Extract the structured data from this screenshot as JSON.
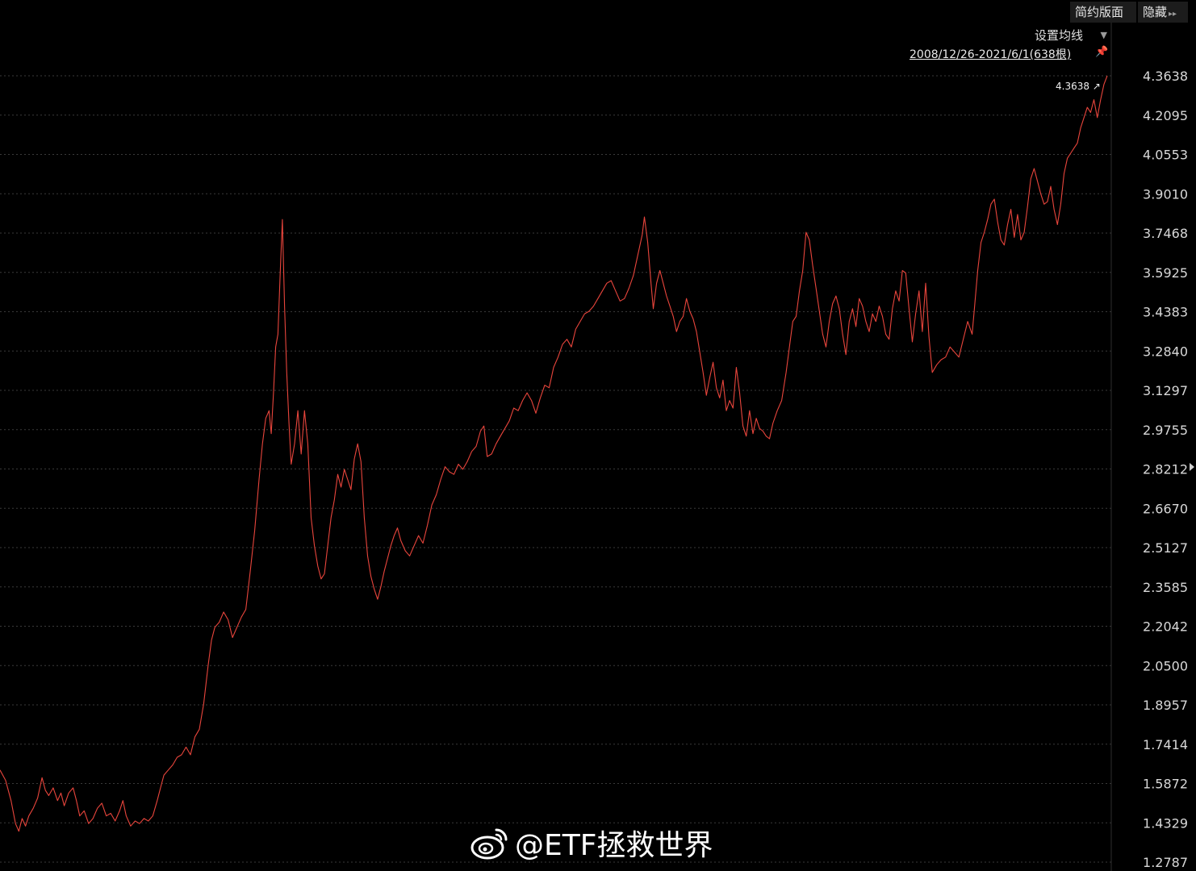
{
  "toolbar": {
    "simple_layout_label": "简约版面",
    "hide_label": "隐藏",
    "hide_arrow_icon": "double-chevron-right-icon"
  },
  "ma_setting": {
    "label": "设置均线",
    "icon": "caret-down-icon"
  },
  "range": {
    "text": "2008/12/26-2021/6/1(638根)",
    "pin_icon": "pin-icon"
  },
  "last_value_label": "4.3638 ↗",
  "watermark": {
    "text": "@ETF拯救世界",
    "icon": "weibo-logo"
  },
  "colors": {
    "line": "#e8453c",
    "grid": "#3a3a3a",
    "axis_text": "#d8d8d8",
    "background": "#000000"
  },
  "chart_data": {
    "type": "line",
    "title": "",
    "xlabel": "",
    "ylabel": "",
    "x_range": [
      "2008/12/26",
      "2021/6/1"
    ],
    "bar_count": 638,
    "ylim": [
      1.2787,
      4.3638
    ],
    "yticks": [
      "4.3638",
      "4.2095",
      "4.0553",
      "3.9010",
      "3.7468",
      "3.5925",
      "3.4383",
      "3.2840",
      "3.1297",
      "2.9755",
      "2.8212",
      "2.6670",
      "2.5127",
      "2.3585",
      "2.2042",
      "2.0500",
      "1.8957",
      "1.7414",
      "1.5872",
      "1.4329",
      "1.2787"
    ],
    "grid": true,
    "series": [
      {
        "points": [
          [
            0.0,
            1.64
          ],
          [
            0.005,
            1.6
          ],
          [
            0.01,
            1.52
          ],
          [
            0.014,
            1.43
          ],
          [
            0.017,
            1.4
          ],
          [
            0.02,
            1.45
          ],
          [
            0.023,
            1.42
          ],
          [
            0.026,
            1.46
          ],
          [
            0.03,
            1.49
          ],
          [
            0.034,
            1.53
          ],
          [
            0.038,
            1.61
          ],
          [
            0.041,
            1.56
          ],
          [
            0.044,
            1.54
          ],
          [
            0.048,
            1.57
          ],
          [
            0.052,
            1.52
          ],
          [
            0.055,
            1.55
          ],
          [
            0.058,
            1.5
          ],
          [
            0.062,
            1.55
          ],
          [
            0.066,
            1.57
          ],
          [
            0.069,
            1.52
          ],
          [
            0.072,
            1.46
          ],
          [
            0.076,
            1.48
          ],
          [
            0.08,
            1.43
          ],
          [
            0.084,
            1.45
          ],
          [
            0.088,
            1.49
          ],
          [
            0.092,
            1.51
          ],
          [
            0.096,
            1.46
          ],
          [
            0.1,
            1.47
          ],
          [
            0.104,
            1.44
          ],
          [
            0.108,
            1.48
          ],
          [
            0.111,
            1.52
          ],
          [
            0.114,
            1.46
          ],
          [
            0.118,
            1.42
          ],
          [
            0.122,
            1.44
          ],
          [
            0.126,
            1.43
          ],
          [
            0.13,
            1.45
          ],
          [
            0.134,
            1.44
          ],
          [
            0.138,
            1.46
          ],
          [
            0.142,
            1.52
          ],
          [
            0.145,
            1.57
          ],
          [
            0.148,
            1.62
          ],
          [
            0.152,
            1.64
          ],
          [
            0.156,
            1.66
          ],
          [
            0.16,
            1.69
          ],
          [
            0.164,
            1.7
          ],
          [
            0.168,
            1.73
          ],
          [
            0.172,
            1.7
          ],
          [
            0.176,
            1.77
          ],
          [
            0.18,
            1.8
          ],
          [
            0.184,
            1.9
          ],
          [
            0.188,
            2.05
          ],
          [
            0.191,
            2.15
          ],
          [
            0.194,
            2.2
          ],
          [
            0.198,
            2.22
          ],
          [
            0.202,
            2.26
          ],
          [
            0.206,
            2.23
          ],
          [
            0.21,
            2.16
          ],
          [
            0.214,
            2.2
          ],
          [
            0.218,
            2.24
          ],
          [
            0.222,
            2.27
          ],
          [
            0.226,
            2.42
          ],
          [
            0.23,
            2.58
          ],
          [
            0.234,
            2.78
          ],
          [
            0.237,
            2.92
          ],
          [
            0.24,
            3.02
          ],
          [
            0.243,
            3.05
          ],
          [
            0.245,
            2.96
          ],
          [
            0.247,
            3.12
          ],
          [
            0.249,
            3.3
          ],
          [
            0.251,
            3.35
          ],
          [
            0.253,
            3.58
          ],
          [
            0.255,
            3.8
          ],
          [
            0.257,
            3.46
          ],
          [
            0.259,
            3.2
          ],
          [
            0.261,
            3.0
          ],
          [
            0.263,
            2.84
          ],
          [
            0.266,
            2.92
          ],
          [
            0.269,
            3.05
          ],
          [
            0.272,
            2.88
          ],
          [
            0.275,
            3.05
          ],
          [
            0.278,
            2.92
          ],
          [
            0.281,
            2.63
          ],
          [
            0.284,
            2.52
          ],
          [
            0.287,
            2.44
          ],
          [
            0.29,
            2.39
          ],
          [
            0.293,
            2.41
          ],
          [
            0.296,
            2.52
          ],
          [
            0.299,
            2.63
          ],
          [
            0.302,
            2.7
          ],
          [
            0.305,
            2.8
          ],
          [
            0.308,
            2.75
          ],
          [
            0.311,
            2.82
          ],
          [
            0.314,
            2.78
          ],
          [
            0.317,
            2.74
          ],
          [
            0.32,
            2.86
          ],
          [
            0.323,
            2.92
          ],
          [
            0.326,
            2.85
          ],
          [
            0.329,
            2.63
          ],
          [
            0.332,
            2.48
          ],
          [
            0.335,
            2.4
          ],
          [
            0.338,
            2.35
          ],
          [
            0.341,
            2.31
          ],
          [
            0.344,
            2.36
          ],
          [
            0.347,
            2.42
          ],
          [
            0.35,
            2.47
          ],
          [
            0.353,
            2.52
          ],
          [
            0.356,
            2.56
          ],
          [
            0.359,
            2.59
          ],
          [
            0.362,
            2.54
          ],
          [
            0.366,
            2.5
          ],
          [
            0.37,
            2.48
          ],
          [
            0.374,
            2.52
          ],
          [
            0.378,
            2.56
          ],
          [
            0.382,
            2.53
          ],
          [
            0.386,
            2.6
          ],
          [
            0.39,
            2.68
          ],
          [
            0.394,
            2.72
          ],
          [
            0.398,
            2.78
          ],
          [
            0.402,
            2.83
          ],
          [
            0.406,
            2.81
          ],
          [
            0.41,
            2.8
          ],
          [
            0.414,
            2.84
          ],
          [
            0.418,
            2.82
          ],
          [
            0.422,
            2.85
          ],
          [
            0.426,
            2.89
          ],
          [
            0.43,
            2.91
          ],
          [
            0.434,
            2.97
          ],
          [
            0.437,
            2.99
          ],
          [
            0.44,
            2.87
          ],
          [
            0.444,
            2.88
          ],
          [
            0.448,
            2.92
          ],
          [
            0.452,
            2.95
          ],
          [
            0.456,
            2.98
          ],
          [
            0.46,
            3.01
          ],
          [
            0.464,
            3.06
          ],
          [
            0.468,
            3.05
          ],
          [
            0.472,
            3.09
          ],
          [
            0.476,
            3.12
          ],
          [
            0.48,
            3.09
          ],
          [
            0.484,
            3.04
          ],
          [
            0.488,
            3.1
          ],
          [
            0.492,
            3.15
          ],
          [
            0.496,
            3.14
          ],
          [
            0.5,
            3.22
          ],
          [
            0.504,
            3.26
          ],
          [
            0.508,
            3.31
          ],
          [
            0.512,
            3.33
          ],
          [
            0.516,
            3.3
          ],
          [
            0.52,
            3.37
          ],
          [
            0.524,
            3.4
          ],
          [
            0.528,
            3.43
          ],
          [
            0.532,
            3.44
          ],
          [
            0.536,
            3.46
          ],
          [
            0.54,
            3.49
          ],
          [
            0.544,
            3.52
          ],
          [
            0.548,
            3.55
          ],
          [
            0.552,
            3.56
          ],
          [
            0.556,
            3.52
          ],
          [
            0.56,
            3.48
          ],
          [
            0.564,
            3.49
          ],
          [
            0.568,
            3.53
          ],
          [
            0.572,
            3.58
          ],
          [
            0.576,
            3.66
          ],
          [
            0.58,
            3.74
          ],
          [
            0.582,
            3.81
          ],
          [
            0.585,
            3.71
          ],
          [
            0.588,
            3.55
          ],
          [
            0.59,
            3.45
          ],
          [
            0.593,
            3.55
          ],
          [
            0.596,
            3.6
          ],
          [
            0.599,
            3.55
          ],
          [
            0.602,
            3.5
          ],
          [
            0.605,
            3.46
          ],
          [
            0.608,
            3.42
          ],
          [
            0.611,
            3.36
          ],
          [
            0.614,
            3.4
          ],
          [
            0.617,
            3.42
          ],
          [
            0.62,
            3.49
          ],
          [
            0.623,
            3.44
          ],
          [
            0.626,
            3.41
          ],
          [
            0.629,
            3.36
          ],
          [
            0.632,
            3.28
          ],
          [
            0.635,
            3.2
          ],
          [
            0.638,
            3.11
          ],
          [
            0.641,
            3.18
          ],
          [
            0.644,
            3.24
          ],
          [
            0.647,
            3.14
          ],
          [
            0.65,
            3.1
          ],
          [
            0.653,
            3.17
          ],
          [
            0.656,
            3.05
          ],
          [
            0.659,
            3.09
          ],
          [
            0.662,
            3.06
          ],
          [
            0.665,
            3.22
          ],
          [
            0.668,
            3.12
          ],
          [
            0.671,
            2.99
          ],
          [
            0.674,
            2.95
          ],
          [
            0.677,
            3.05
          ],
          [
            0.68,
            2.96
          ],
          [
            0.683,
            3.02
          ],
          [
            0.686,
            2.98
          ],
          [
            0.689,
            2.97
          ],
          [
            0.692,
            2.95
          ],
          [
            0.695,
            2.94
          ],
          [
            0.698,
            3.0
          ],
          [
            0.702,
            3.05
          ],
          [
            0.706,
            3.09
          ],
          [
            0.71,
            3.2
          ],
          [
            0.713,
            3.3
          ],
          [
            0.716,
            3.4
          ],
          [
            0.719,
            3.42
          ],
          [
            0.722,
            3.52
          ],
          [
            0.725,
            3.6
          ],
          [
            0.728,
            3.75
          ],
          [
            0.731,
            3.72
          ],
          [
            0.734,
            3.62
          ],
          [
            0.737,
            3.53
          ],
          [
            0.74,
            3.44
          ],
          [
            0.743,
            3.35
          ],
          [
            0.746,
            3.3
          ],
          [
            0.749,
            3.4
          ],
          [
            0.752,
            3.47
          ],
          [
            0.755,
            3.5
          ],
          [
            0.758,
            3.45
          ],
          [
            0.761,
            3.35
          ],
          [
            0.764,
            3.27
          ],
          [
            0.767,
            3.4
          ],
          [
            0.77,
            3.45
          ],
          [
            0.773,
            3.38
          ],
          [
            0.776,
            3.49
          ],
          [
            0.779,
            3.46
          ],
          [
            0.782,
            3.4
          ],
          [
            0.785,
            3.36
          ],
          [
            0.788,
            3.43
          ],
          [
            0.791,
            3.4
          ],
          [
            0.794,
            3.46
          ],
          [
            0.797,
            3.42
          ],
          [
            0.8,
            3.35
          ],
          [
            0.803,
            3.33
          ],
          [
            0.806,
            3.45
          ],
          [
            0.809,
            3.52
          ],
          [
            0.812,
            3.48
          ],
          [
            0.815,
            3.6
          ],
          [
            0.818,
            3.59
          ],
          [
            0.821,
            3.45
          ],
          [
            0.824,
            3.32
          ],
          [
            0.827,
            3.43
          ],
          [
            0.83,
            3.52
          ],
          [
            0.833,
            3.36
          ],
          [
            0.836,
            3.55
          ],
          [
            0.839,
            3.34
          ],
          [
            0.842,
            3.2
          ],
          [
            0.846,
            3.23
          ],
          [
            0.85,
            3.25
          ],
          [
            0.854,
            3.26
          ],
          [
            0.858,
            3.3
          ],
          [
            0.862,
            3.28
          ],
          [
            0.866,
            3.26
          ],
          [
            0.87,
            3.33
          ],
          [
            0.874,
            3.4
          ],
          [
            0.878,
            3.35
          ],
          [
            0.88,
            3.45
          ],
          [
            0.883,
            3.6
          ],
          [
            0.886,
            3.71
          ],
          [
            0.889,
            3.75
          ],
          [
            0.892,
            3.8
          ],
          [
            0.895,
            3.86
          ],
          [
            0.898,
            3.88
          ],
          [
            0.901,
            3.79
          ],
          [
            0.904,
            3.72
          ],
          [
            0.907,
            3.7
          ],
          [
            0.91,
            3.78
          ],
          [
            0.913,
            3.84
          ],
          [
            0.916,
            3.73
          ],
          [
            0.919,
            3.82
          ],
          [
            0.922,
            3.72
          ],
          [
            0.925,
            3.75
          ],
          [
            0.928,
            3.85
          ],
          [
            0.931,
            3.96
          ],
          [
            0.934,
            4.0
          ],
          [
            0.937,
            3.95
          ],
          [
            0.94,
            3.9
          ],
          [
            0.943,
            3.86
          ],
          [
            0.946,
            3.87
          ],
          [
            0.949,
            3.93
          ],
          [
            0.952,
            3.84
          ],
          [
            0.955,
            3.78
          ],
          [
            0.958,
            3.86
          ],
          [
            0.961,
            3.98
          ],
          [
            0.964,
            4.04
          ],
          [
            0.967,
            4.06
          ],
          [
            0.97,
            4.08
          ],
          [
            0.973,
            4.1
          ],
          [
            0.976,
            4.16
          ],
          [
            0.979,
            4.2
          ],
          [
            0.982,
            4.24
          ],
          [
            0.985,
            4.22
          ],
          [
            0.988,
            4.27
          ],
          [
            0.991,
            4.2
          ],
          [
            0.994,
            4.27
          ],
          [
            0.997,
            4.33
          ],
          [
            1.0,
            4.3638
          ]
        ]
      }
    ]
  }
}
